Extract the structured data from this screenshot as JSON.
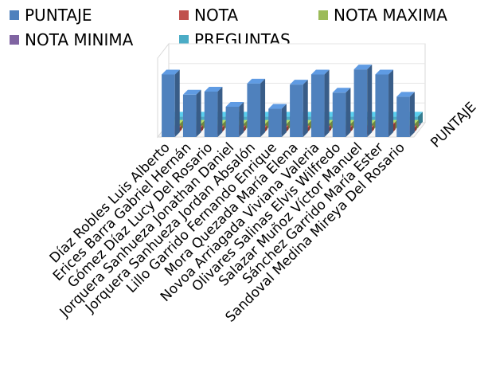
{
  "chart_data": {
    "type": "bar",
    "three_d": true,
    "legend_position": "top",
    "depth_axis_label": "PUNTAJE",
    "categories": [
      "Díaz Robles Luis Alberto",
      "Erices Barra Gabriel Hernán",
      "Gómez Díaz Lucy Del Rosario",
      "Jorquera Sanhueza Jonathan Daniel",
      "Jorquera Sanhueza Jordan Absalón",
      "Lillo Garrido Fernando Enrique",
      "Mora Quezada María Elena",
      "Novoa Arriagada Viviana Valeria",
      "Olivares Salinas Elvis Wilfredo",
      "Salazar Muñoz Víctor Manuel",
      "Sánchez Garrido María Ester",
      "Sandoval Medina Mireya Del Rosario"
    ],
    "series": [
      {
        "name": "PUNTAJE",
        "color": "#4F81BD",
        "values": [
          62,
          42,
          45,
          30,
          53,
          28,
          52,
          62,
          44,
          67,
          62,
          40
        ]
      },
      {
        "name": "NOTA",
        "color": "#C0504D",
        "values": [
          4,
          4,
          4,
          4,
          4,
          4,
          4,
          4,
          4,
          4,
          7,
          4
        ]
      },
      {
        "name": "NOTA MAXIMA",
        "color": "#9BBB59",
        "values": [
          7,
          7,
          7,
          7,
          7,
          7,
          7,
          7,
          7,
          7,
          7,
          7
        ]
      },
      {
        "name": "NOTA MINIMA",
        "color": "#8064A2",
        "values": [
          1,
          1,
          1,
          1,
          1,
          1,
          1,
          1,
          1,
          1,
          1,
          1
        ]
      },
      {
        "name": "PREGUNTAS",
        "color": "#4BACC6",
        "values": [
          10,
          10,
          10,
          10,
          10,
          10,
          10,
          10,
          10,
          10,
          10,
          10
        ]
      }
    ],
    "ylim": [
      0,
      75
    ],
    "grid": true
  }
}
